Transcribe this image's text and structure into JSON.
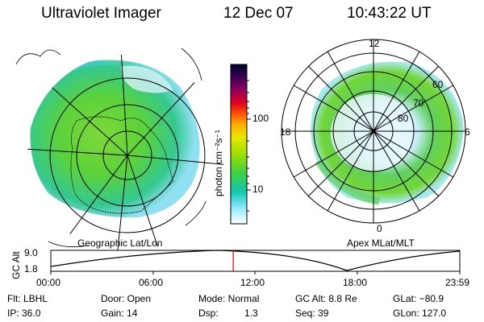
{
  "header": {
    "instrument": "Ultraviolet Imager",
    "date": "12 Dec 07",
    "time": "10:43:22 UT"
  },
  "left_map": {
    "caption": "Geographic Lat/Lon"
  },
  "right_map": {
    "caption": "Apex MLat/MLT",
    "mlt_labels": {
      "top": "12",
      "left": "18",
      "right": "6",
      "bottom": "0"
    },
    "lat_labels": [
      "60",
      "70",
      "80"
    ]
  },
  "colorbar": {
    "unit_label": "photon cm⁻²s⁻¹",
    "ticks": [
      "100",
      "10"
    ],
    "colors": [
      "#000033",
      "#1a0033",
      "#4b0060",
      "#7a0090",
      "#b0006a",
      "#e00020",
      "#ff5000",
      "#ffa000",
      "#e8e000",
      "#a8e000",
      "#58d800",
      "#20d070",
      "#10c8c8",
      "#a0e8ff",
      "#ffffff"
    ]
  },
  "altitude_plot": {
    "ylabel": "GC Alt",
    "ymax": "9.0",
    "ymin": "1.8",
    "x_ticks": [
      "00:00",
      "06:00",
      "12:00",
      "18:00",
      "23:59"
    ],
    "marker_time_fraction": 0.446
  },
  "footer": {
    "row1": {
      "filter": "Flt: LBHL",
      "door": "Door: Open",
      "mode": "Mode: Normal",
      "gc_alt": "GC Alt: 8.8 Re",
      "glat": "GLat: −80.9"
    },
    "row2": {
      "ip": "IP: 36.0",
      "gain": "Gain: 14",
      "dsp_label": "Dsp:",
      "dsp_value": "1.3",
      "seq": "Seq: 39",
      "glon": "GLon: 127.0"
    }
  }
}
